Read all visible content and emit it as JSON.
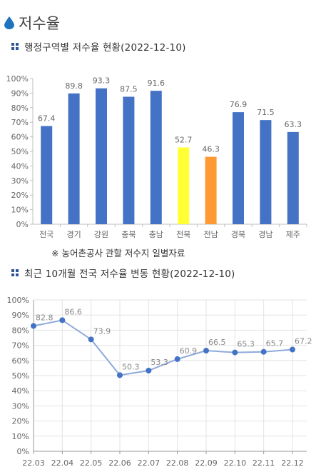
{
  "page": {
    "title": "저수율",
    "drop_color": "#1e73be"
  },
  "section1": {
    "title": "행정구역별 저수율 현황(2022-12-10)",
    "footnote": "※ 농어촌공사 관할 저수지 일별자료"
  },
  "section2": {
    "title": "최근 10개월 전국 저수율 변동 현황(2022-12-10)"
  },
  "chart_data": [
    {
      "type": "bar",
      "title": "행정구역별 저수율 현황(2022-12-10)",
      "categories": [
        "전국",
        "경기",
        "강원",
        "충북",
        "충남",
        "전북",
        "전남",
        "경북",
        "경남",
        "제주"
      ],
      "values": [
        67.4,
        89.8,
        93.3,
        87.5,
        91.6,
        52.7,
        46.3,
        76.9,
        71.5,
        63.3
      ],
      "colors": [
        "#4472c4",
        "#4472c4",
        "#4472c4",
        "#4472c4",
        "#4472c4",
        "#ffff33",
        "#ff9933",
        "#4472c4",
        "#4472c4",
        "#4472c4"
      ],
      "ylim": [
        0,
        100
      ],
      "yticks": [
        "0%",
        "10%",
        "20%",
        "30%",
        "40%",
        "50%",
        "60%",
        "70%",
        "80%",
        "90%",
        "100%"
      ],
      "grid": false
    },
    {
      "type": "line",
      "title": "최근 10개월 전국 저수율 변동 현황(2022-12-10)",
      "x": [
        "22.03",
        "22.04",
        "22.05",
        "22.06",
        "22.07",
        "22.08",
        "22.09",
        "22.10",
        "22.11",
        "22.12"
      ],
      "values": [
        82.8,
        86.6,
        73.9,
        50.3,
        53.3,
        60.9,
        66.5,
        65.3,
        65.7,
        67.2
      ],
      "line_color": "#8eaadb",
      "marker_color": "#4472c4",
      "ylim": [
        0,
        100
      ],
      "yticks": [
        "0%",
        "10%",
        "20%",
        "30%",
        "40%",
        "50%",
        "60%",
        "70%",
        "80%",
        "90%",
        "100%"
      ],
      "grid": true
    }
  ]
}
